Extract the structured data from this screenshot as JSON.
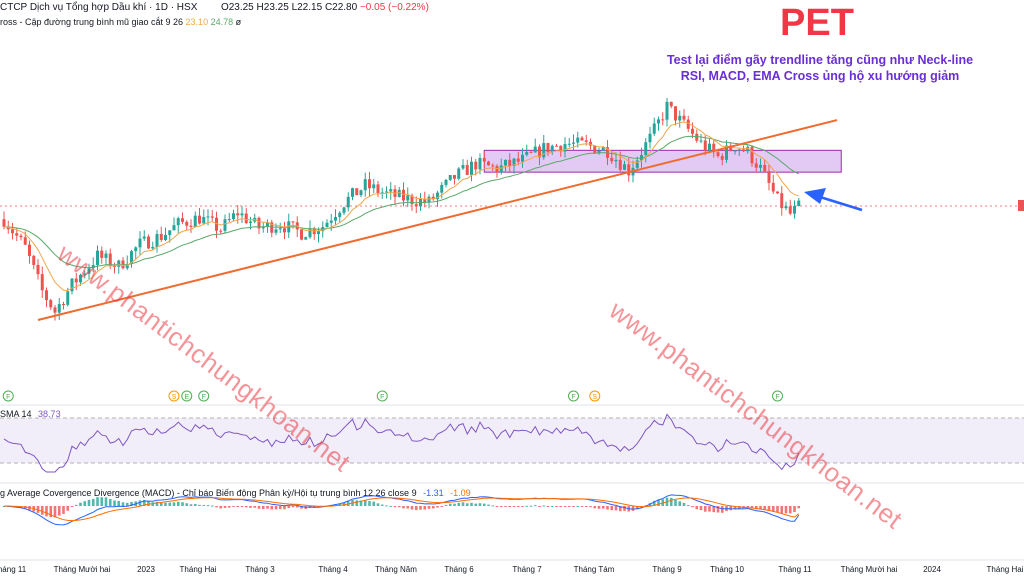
{
  "header": {
    "symbol_line": "CTCP Dịch vụ Tổng hợp Dầu khí · 1D · HSX",
    "ohlc_o": "O23.25",
    "ohlc_h": "H23.25",
    "ohlc_l": "L22.15",
    "ohlc_c": "C22.80",
    "change": "−0.05 (−0.22%)",
    "ema_line_label": "ross - Cập đường trung bình mũ giao cắt 9 26",
    "ema_val1": "23.10",
    "ema_val2": "24.78",
    "ema_suffix": "ø"
  },
  "annotation": {
    "ticker": "PET",
    "note_line1": "Test lại điểm gãy trendline tăng cũng như Neck-line",
    "note_line2": "RSI, MACD, EMA Cross ủng hộ xu hướng giảm"
  },
  "watermark": {
    "text1": "www.phantichchungkhoan.net",
    "text2": "www.phantichchungkhoan.net"
  },
  "rsi_panel": {
    "label": "SMA 14",
    "value": "38.73"
  },
  "macd_panel": {
    "label": "g Average Covergence Divergence (MACD) - Chỉ báo Biến động Phân kỳ/Hội tụ trung bình 12 26 close 9",
    "v1": "-1.31",
    "v2": "-1.09"
  },
  "colors": {
    "up": "#26a69a",
    "down": "#ef5350",
    "trendline": "#f06a2a",
    "zone_fill": "#d9b8f0",
    "zone_stroke": "#9c27b0",
    "ema_fast": "#f2a64c",
    "ema_slow": "#5aa86a",
    "arrow": "#2962ff",
    "rsi_line": "#7e57c2",
    "macd_line": "#2962ff",
    "signal_line": "#ff6d00"
  },
  "chart_data": {
    "type": "candlestick",
    "x_tick_labels": [
      "háng 11",
      "Tháng Mười hai",
      "2023",
      "Tháng Hai",
      "Tháng 3",
      "Tháng 4",
      "Tháng Năm",
      "Tháng 6",
      "Tháng 7",
      "Tháng Tám",
      "Tháng 9",
      "Tháng 10",
      "Tháng 11",
      "Tháng Mười hai",
      "2024",
      "Tháng Hai"
    ],
    "event_markers": [
      {
        "label": "F",
        "color": "#4caf50",
        "i": 1
      },
      {
        "label": "S",
        "color": "#ff9800",
        "i": 40
      },
      {
        "label": "E",
        "color": "#4caf50",
        "i": 43
      },
      {
        "label": "F",
        "color": "#4caf50",
        "i": 47
      },
      {
        "label": "F",
        "color": "#4caf50",
        "i": 89
      },
      {
        "label": "F",
        "color": "#4caf50",
        "i": 134
      },
      {
        "label": "S",
        "color": "#ff9800",
        "i": 139
      },
      {
        "label": "F",
        "color": "#4caf50",
        "i": 182
      }
    ],
    "price_path": [
      [
        0,
        25.5
      ],
      [
        5,
        23.8
      ],
      [
        9,
        21.2
      ],
      [
        12,
        20.0
      ],
      [
        16,
        21.6
      ],
      [
        22,
        23.3
      ],
      [
        27,
        22.7
      ],
      [
        32,
        24.0
      ],
      [
        37,
        24.5
      ],
      [
        41,
        25.2
      ],
      [
        46,
        25.6
      ],
      [
        51,
        24.9
      ],
      [
        55,
        25.9
      ],
      [
        60,
        25.0
      ],
      [
        65,
        25.2
      ],
      [
        70,
        24.7
      ],
      [
        75,
        25.1
      ],
      [
        80,
        26.5
      ],
      [
        85,
        27.5
      ],
      [
        90,
        27.0
      ],
      [
        95,
        26.7
      ],
      [
        100,
        26.5
      ],
      [
        106,
        28.0
      ],
      [
        111,
        28.8
      ],
      [
        116,
        28.5
      ],
      [
        122,
        29.0
      ],
      [
        127,
        29.7
      ],
      [
        132,
        30.0
      ],
      [
        137,
        29.9
      ],
      [
        142,
        29.6
      ],
      [
        147,
        28.4
      ],
      [
        152,
        30.3
      ],
      [
        156,
        32.2
      ],
      [
        160,
        31.1
      ],
      [
        164,
        30.0
      ],
      [
        168,
        29.2
      ],
      [
        172,
        29.9
      ],
      [
        175,
        29.5
      ],
      [
        178,
        28.5
      ],
      [
        182,
        26.6
      ],
      [
        185,
        25.8
      ],
      [
        187,
        26.2
      ]
    ],
    "trendline": {
      "p1": [
        8,
        19.5
      ],
      "p2": [
        196,
        31.4
      ]
    },
    "neckline_zone": {
      "i_from": 113,
      "i_to": 197,
      "price_low": 28.3,
      "price_high": 29.6
    },
    "rsi_range": [
      0,
      100
    ],
    "rsi_band": [
      30,
      70
    ],
    "rsi_last": 38.73,
    "macd_last": -1.31,
    "signal_last": -1.09
  }
}
